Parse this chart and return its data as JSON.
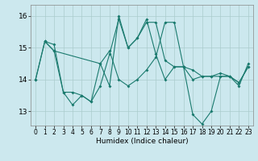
{
  "xlabel": "Humidex (Indice chaleur)",
  "xlim": [
    -0.5,
    23.5
  ],
  "ylim": [
    12.55,
    16.35
  ],
  "yticks": [
    13,
    14,
    15,
    16
  ],
  "xticks": [
    0,
    1,
    2,
    3,
    4,
    5,
    6,
    7,
    8,
    9,
    10,
    11,
    12,
    13,
    14,
    15,
    16,
    17,
    18,
    19,
    20,
    21,
    22,
    23
  ],
  "bg_color": "#cce8ee",
  "grid_color": "#aacccc",
  "line_color": "#1a7a6e",
  "line1_x": [
    0,
    1,
    2,
    3,
    4,
    5,
    6,
    7,
    8,
    9,
    10,
    11,
    12,
    13,
    14,
    15,
    16,
    17,
    18,
    19,
    20,
    21,
    22,
    23
  ],
  "line1_y": [
    14.0,
    15.2,
    15.1,
    13.6,
    13.2,
    13.5,
    13.3,
    13.8,
    14.8,
    15.9,
    15.0,
    15.3,
    15.8,
    15.8,
    14.6,
    14.4,
    14.4,
    14.0,
    14.1,
    14.1,
    14.2,
    14.1,
    13.9,
    14.4
  ],
  "line2_x": [
    0,
    1,
    2,
    3,
    4,
    5,
    6,
    7,
    8,
    9,
    10,
    11,
    12,
    13,
    14,
    15,
    16,
    17,
    18,
    19,
    20,
    21,
    22,
    23
  ],
  "line2_y": [
    14.0,
    15.2,
    14.9,
    13.6,
    13.6,
    13.5,
    13.3,
    14.5,
    14.9,
    14.0,
    13.8,
    14.0,
    14.3,
    14.7,
    15.8,
    15.8,
    14.4,
    14.3,
    14.1,
    14.1,
    14.1,
    14.1,
    13.9,
    14.4
  ],
  "line3_x": [
    1,
    2,
    7,
    8,
    9,
    10,
    11,
    12,
    13,
    14,
    15,
    16,
    17,
    18,
    19,
    20,
    21,
    22,
    23
  ],
  "line3_y": [
    15.2,
    14.9,
    14.5,
    13.8,
    16.0,
    15.0,
    15.3,
    15.9,
    14.8,
    14.0,
    14.4,
    14.4,
    12.9,
    12.6,
    13.0,
    14.1,
    14.1,
    13.8,
    14.5
  ]
}
